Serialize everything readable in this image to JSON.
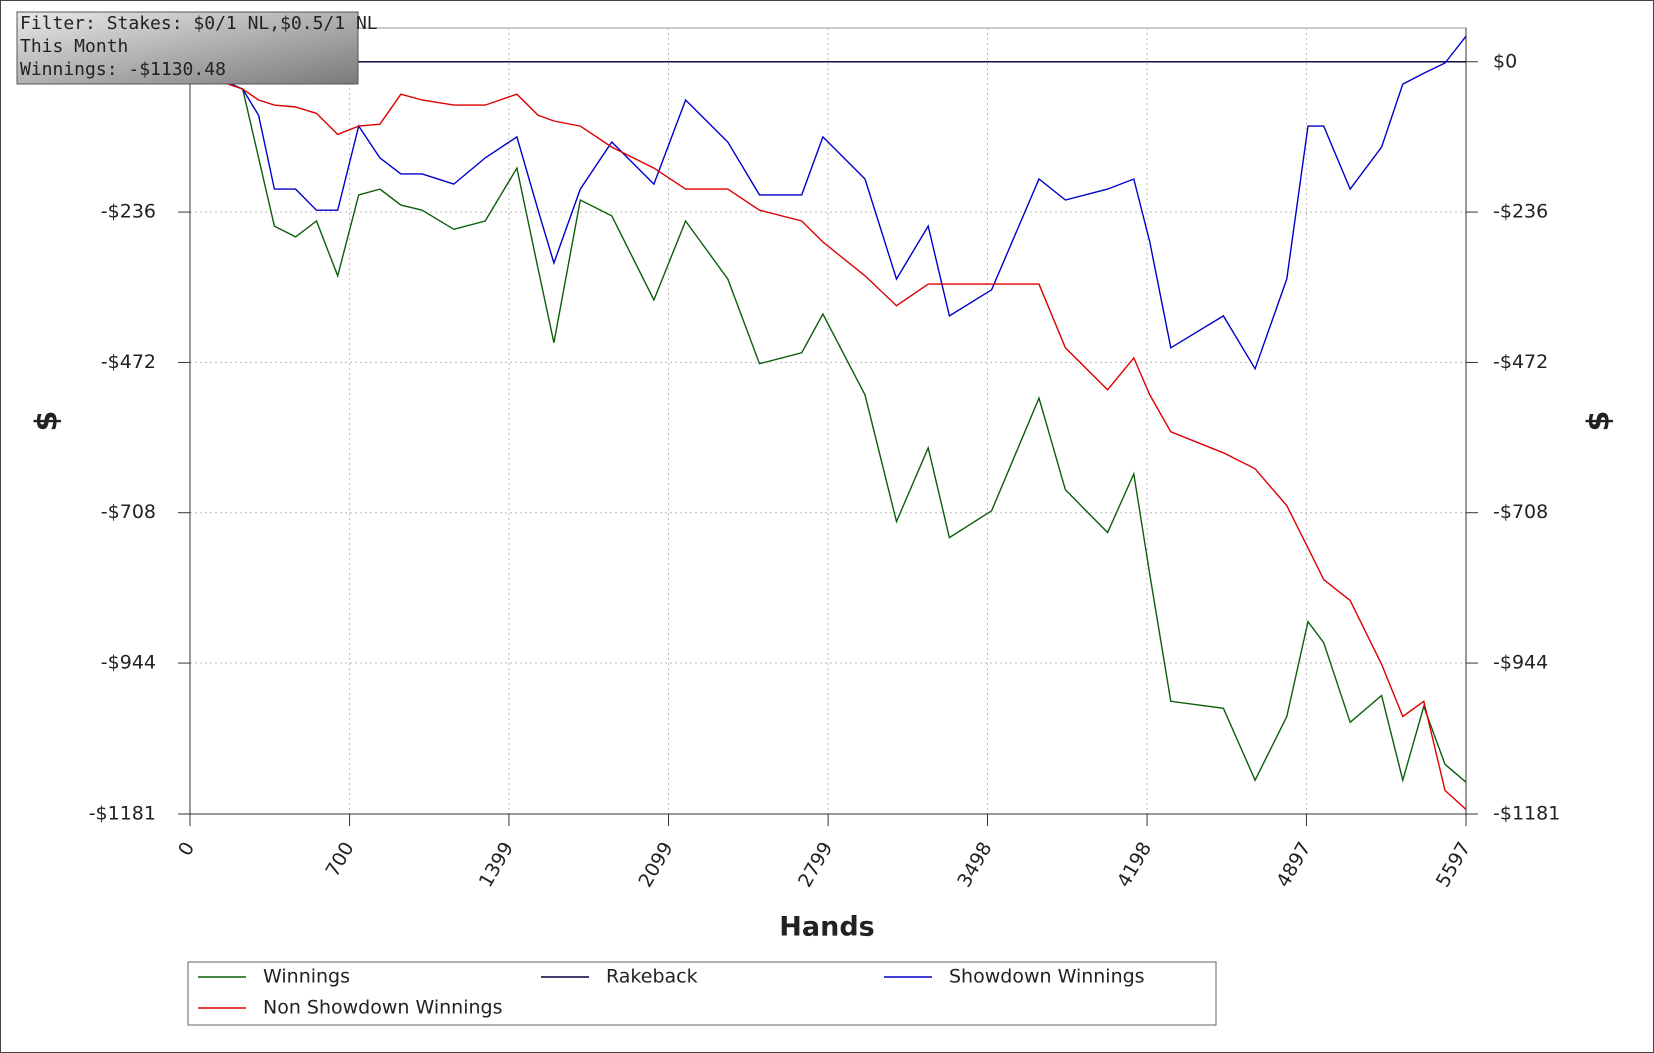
{
  "chart_data": {
    "type": "line",
    "info": [
      "Filter: Stakes: $0/1 NL,$0.5/1 NL",
      "This Month",
      "Winnings: -$1130.48"
    ],
    "xlabel": "Hands",
    "ylabel": "$",
    "xlim": [
      0,
      5597
    ],
    "ylim": [
      -1181,
      53
    ],
    "xticks": [
      0,
      700,
      1399,
      2099,
      2799,
      3498,
      4198,
      4897,
      5597
    ],
    "yticks": [
      {
        "value": 0,
        "label": "$0"
      },
      {
        "value": -236,
        "label": "-$236"
      },
      {
        "value": -472,
        "label": "-$472"
      },
      {
        "value": -708,
        "label": "-$708"
      },
      {
        "value": -944,
        "label": "-$944"
      },
      {
        "value": -1181,
        "label": "-$1181"
      }
    ],
    "grid": true,
    "x": [
      0,
      93,
      231,
      301,
      370,
      463,
      555,
      648,
      740,
      833,
      925,
      1018,
      1157,
      1295,
      1434,
      1527,
      1596,
      1712,
      1850,
      2035,
      2174,
      2359,
      2498,
      2683,
      2776,
      2961,
      3099,
      3238,
      3331,
      3516,
      3724,
      3840,
      4025,
      4140,
      4210,
      4302,
      4533,
      4672,
      4811,
      4904,
      4973,
      5089,
      5227,
      5320,
      5412,
      5505,
      5597
    ],
    "series": [
      {
        "name": "Winnings",
        "color": "#0b5e0b",
        "values": [
          -18,
          -22,
          -43,
          -151,
          -258,
          -275,
          -250,
          -336,
          -209,
          -200,
          -225,
          -233,
          -263,
          -250,
          -167,
          -325,
          -441,
          -217,
          -242,
          -374,
          -250,
          -341,
          -474,
          -457,
          -396,
          -523,
          -722,
          -606,
          -747,
          -705,
          -528,
          -672,
          -739,
          -647,
          -805,
          -1004,
          -1015,
          -1128,
          -1028,
          -879,
          -912,
          -1037,
          -995,
          -1128,
          -1012,
          -1103,
          -1131
        ]
      },
      {
        "name": "Rakeback",
        "color": "#000040",
        "values": [
          0,
          0,
          0,
          0,
          0,
          0,
          0,
          0,
          0,
          0,
          0,
          0,
          0,
          0,
          0,
          0,
          0,
          0,
          0,
          0,
          0,
          0,
          0,
          0,
          0,
          0,
          0,
          0,
          0,
          0,
          0,
          0,
          0,
          0,
          0,
          0,
          0,
          0,
          0,
          0,
          0,
          0,
          0,
          0,
          0,
          0,
          0
        ]
      },
      {
        "name": "Showdown Winnings",
        "color": "#0000cc",
        "values": [
          -18,
          -22,
          -43,
          -84,
          -200,
          -200,
          -233,
          -233,
          -101,
          -151,
          -176,
          -176,
          -192,
          -151,
          -118,
          -233,
          -316,
          -200,
          -126,
          -192,
          -60,
          -126,
          -209,
          -209,
          -118,
          -184,
          -341,
          -258,
          -399,
          -358,
          -184,
          -217,
          -200,
          -184,
          -283,
          -449,
          -399,
          -482,
          -341,
          -101,
          -101,
          -200,
          -134,
          -35,
          -18,
          -2,
          40
        ]
      },
      {
        "name": "Non Showdown Winnings",
        "color": "#dd0000",
        "values": [
          -18,
          -26,
          -43,
          -60,
          -68,
          -71,
          -81,
          -114,
          -101,
          -98,
          -51,
          -60,
          -68,
          -68,
          -51,
          -84,
          -93,
          -101,
          -134,
          -167,
          -200,
          -200,
          -233,
          -250,
          -283,
          -336,
          -383,
          -349,
          -349,
          -349,
          -349,
          -449,
          -515,
          -465,
          -523,
          -581,
          -614,
          -639,
          -697,
          -763,
          -813,
          -846,
          -946,
          -1028,
          -1004,
          -1144,
          -1174
        ]
      }
    ]
  }
}
